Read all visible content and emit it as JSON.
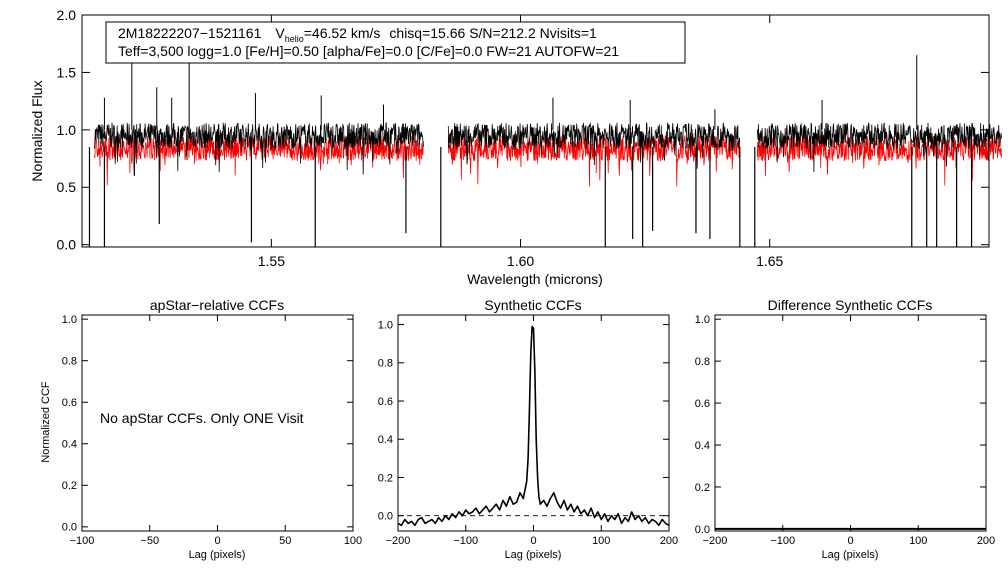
{
  "chart_data": [
    {
      "type": "line",
      "title": "",
      "xlabel": "Wavelength (microns)",
      "ylabel": "Normalized Flux",
      "xlim": [
        1.512,
        1.694
      ],
      "ylim": [
        -0.02,
        2.0
      ],
      "xticks": [
        1.55,
        1.6,
        1.65
      ],
      "xtick_labels": [
        "1.55",
        "1.60",
        "1.65"
      ],
      "yticks": [
        0.0,
        0.5,
        1.0,
        1.5,
        2.0
      ],
      "ytick_labels": [
        "0.0",
        "0.5",
        "1.0",
        "1.5",
        "2.0"
      ],
      "header": {
        "star_id": "2M18222207−1521161",
        "v_label": "V",
        "v_sub": "helio",
        "v_value": "=46.52 km/s",
        "stats": "chisq=15.66  S/N=212.2  Nvisits=1",
        "params": "Teff=3,500 logg=1.0 [Fe/H]=0.50 [alpha/Fe]=0.0 [C/Fe]=0.0 FW=21 AUTOFW=21"
      },
      "series": [
        {
          "name": "observed spectrum",
          "color": "#000000",
          "mean": 0.95,
          "noise": 0.07
        },
        {
          "name": "model spectrum",
          "color": "#ff0000",
          "mean": 0.84,
          "noise": 0.07
        }
      ],
      "chip_ranges": [
        [
          1.5145,
          1.5805
        ],
        [
          1.5855,
          1.644
        ],
        [
          1.6475,
          1.6965
        ]
      ],
      "spikes": [
        {
          "x": 1.5165,
          "y": 1.28
        },
        {
          "x": 1.522,
          "y": 1.62
        },
        {
          "x": 1.527,
          "y": 1.37
        },
        {
          "x": 1.53,
          "y": 1.28
        },
        {
          "x": 1.5335,
          "y": 1.74
        },
        {
          "x": 1.5468,
          "y": 1.32
        },
        {
          "x": 1.56,
          "y": 1.3
        },
        {
          "x": 1.5725,
          "y": 1.22
        },
        {
          "x": 1.6065,
          "y": 1.28
        },
        {
          "x": 1.622,
          "y": 1.26
        },
        {
          "x": 1.639,
          "y": 1.18
        },
        {
          "x": 1.6605,
          "y": 1.26
        },
        {
          "x": 1.6795,
          "y": 1.65
        }
      ],
      "dips": [
        {
          "x": 1.5135,
          "y": -0.05
        },
        {
          "x": 1.5165,
          "y": -0.05
        },
        {
          "x": 1.5225,
          "y": 0.6
        },
        {
          "x": 1.5275,
          "y": 0.18
        },
        {
          "x": 1.546,
          "y": 0.02
        },
        {
          "x": 1.5588,
          "y": -0.05
        },
        {
          "x": 1.577,
          "y": 0.1
        },
        {
          "x": 1.584,
          "y": -0.05
        },
        {
          "x": 1.617,
          "y": -0.05
        },
        {
          "x": 1.6225,
          "y": 0.05
        },
        {
          "x": 1.6245,
          "y": -0.05
        },
        {
          "x": 1.6265,
          "y": 0.12
        },
        {
          "x": 1.6352,
          "y": 0.1
        },
        {
          "x": 1.638,
          "y": 0.05
        },
        {
          "x": 1.644,
          "y": -0.05
        },
        {
          "x": 1.647,
          "y": -0.05
        },
        {
          "x": 1.6785,
          "y": -0.05
        },
        {
          "x": 1.6815,
          "y": -0.05
        },
        {
          "x": 1.6835,
          "y": -0.05
        },
        {
          "x": 1.6875,
          "y": -0.05
        },
        {
          "x": 1.6905,
          "y": -0.05
        }
      ]
    },
    {
      "type": "line",
      "title": "apStar−relative CCFs",
      "xlabel": "Lag (pixels)",
      "ylabel": "Normalized CCF",
      "xlim": [
        -100,
        100
      ],
      "ylim": [
        -0.02,
        1.02
      ],
      "xticks": [
        -100,
        -50,
        0,
        50,
        100
      ],
      "xtick_labels": [
        "−100",
        "−50",
        "0",
        "50",
        "100"
      ],
      "yticks": [
        0.0,
        0.2,
        0.4,
        0.6,
        0.8,
        1.0
      ],
      "ytick_labels": [
        "0.0",
        "0.2",
        "0.4",
        "0.6",
        "0.8",
        "1.0"
      ],
      "annotation": "No apStar CCFs.  Only ONE Visit",
      "series": []
    },
    {
      "type": "line",
      "title": "Synthetic CCFs",
      "xlabel": "Lag (pixels)",
      "ylabel": "",
      "xlim": [
        -200,
        200
      ],
      "ylim": [
        -0.08,
        1.05
      ],
      "xticks": [
        -200,
        -100,
        0,
        100,
        200
      ],
      "xtick_labels": [
        "−200",
        "−100",
        "0",
        "100",
        "200"
      ],
      "yticks": [
        0.0,
        0.2,
        0.4,
        0.6,
        0.8,
        1.0
      ],
      "ytick_labels": [
        "0.0",
        "0.2",
        "0.4",
        "0.6",
        "0.8",
        "1.0"
      ],
      "zero_line": 0.0,
      "series": [
        {
          "name": "synthetic CCF",
          "x": [
            -200,
            -195,
            -190,
            -185,
            -180,
            -175,
            -170,
            -165,
            -160,
            -155,
            -150,
            -145,
            -140,
            -135,
            -130,
            -125,
            -120,
            -115,
            -110,
            -105,
            -100,
            -95,
            -90,
            -85,
            -80,
            -75,
            -70,
            -65,
            -60,
            -55,
            -50,
            -45,
            -40,
            -35,
            -30,
            -25,
            -20,
            -15,
            -10,
            -8,
            -6,
            -4,
            -2,
            0,
            2,
            4,
            6,
            8,
            10,
            15,
            20,
            25,
            30,
            35,
            40,
            45,
            50,
            55,
            60,
            65,
            70,
            75,
            80,
            85,
            90,
            95,
            100,
            105,
            110,
            115,
            120,
            125,
            130,
            135,
            140,
            145,
            150,
            155,
            160,
            165,
            170,
            175,
            180,
            185,
            190,
            195,
            200
          ],
          "values": [
            -0.04,
            -0.05,
            -0.02,
            -0.04,
            -0.03,
            -0.05,
            -0.02,
            -0.01,
            -0.04,
            -0.03,
            -0.02,
            -0.04,
            -0.01,
            -0.03,
            0.0,
            -0.02,
            0.01,
            -0.01,
            0.02,
            0.0,
            0.03,
            0.01,
            0.02,
            0.04,
            0.01,
            0.03,
            0.05,
            0.02,
            0.04,
            0.06,
            0.03,
            0.08,
            0.05,
            0.1,
            0.06,
            0.07,
            0.12,
            0.09,
            0.18,
            0.3,
            0.55,
            0.85,
            0.99,
            0.98,
            0.75,
            0.4,
            0.2,
            0.1,
            0.06,
            0.08,
            0.05,
            0.09,
            0.12,
            0.07,
            0.04,
            0.08,
            0.03,
            0.06,
            0.02,
            0.05,
            0.01,
            0.03,
            0.0,
            0.04,
            -0.01,
            0.02,
            -0.02,
            0.01,
            -0.03,
            0.0,
            -0.02,
            0.01,
            -0.04,
            -0.01,
            -0.03,
            0.02,
            -0.02,
            0.0,
            -0.03,
            -0.01,
            -0.04,
            -0.02,
            -0.03,
            -0.05,
            -0.02,
            -0.04,
            -0.05
          ]
        }
      ]
    },
    {
      "type": "line",
      "title": "Difference Synthetic CCFs",
      "xlabel": "Lag (pixels)",
      "ylabel": "",
      "xlim": [
        -200,
        200
      ],
      "ylim": [
        -0.01,
        1.02
      ],
      "xticks": [
        -200,
        -100,
        0,
        100,
        200
      ],
      "xtick_labels": [
        "−200",
        "−100",
        "0",
        "100",
        "200"
      ],
      "yticks": [
        0.0,
        0.2,
        0.4,
        0.6,
        0.8,
        1.0
      ],
      "ytick_labels": [
        "0.0",
        "0.2",
        "0.4",
        "0.6",
        "0.8",
        "1.0"
      ],
      "series": [
        {
          "name": "difference CCF",
          "x": [
            -200,
            200
          ],
          "values": [
            0.0,
            0.0
          ]
        }
      ]
    }
  ]
}
